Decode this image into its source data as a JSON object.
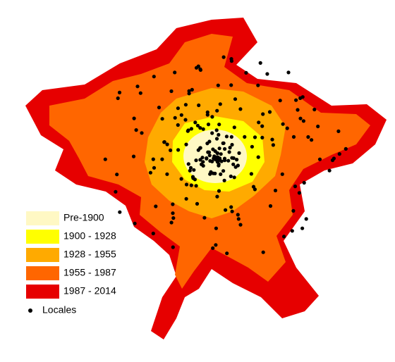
{
  "legend": {
    "items": [
      {
        "label": "Pre-1900",
        "color": "#fff8c4"
      },
      {
        "label": "1900 - 1928",
        "color": "#ffff00"
      },
      {
        "label": "1928 - 1955",
        "color": "#ffaa00"
      },
      {
        "label": "1955 - 1987",
        "color": "#ff6600"
      },
      {
        "label": "1987 - 2014",
        "color": "#e60000"
      }
    ],
    "marker_label": "Locales"
  }
}
